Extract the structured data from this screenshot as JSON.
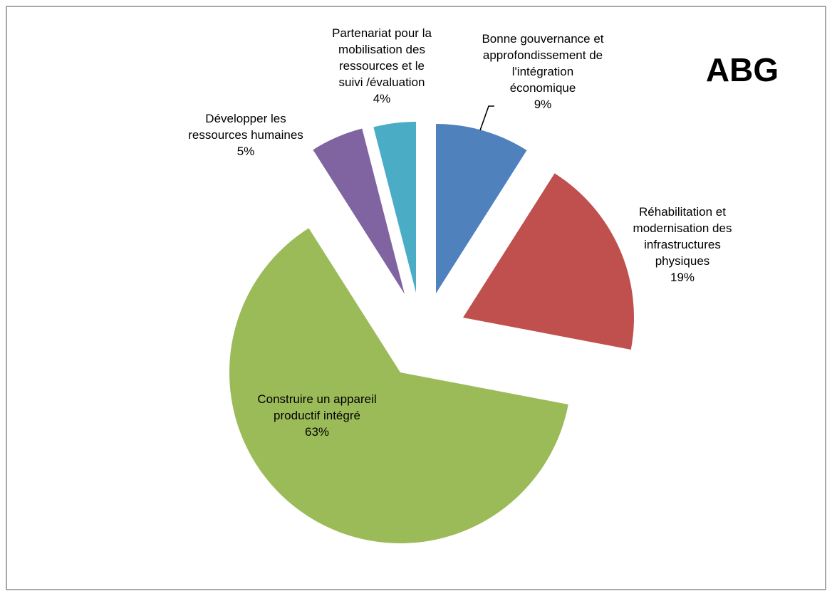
{
  "chart_data": {
    "type": "pie",
    "title": "ABG",
    "exploded": true,
    "start_angle_deg": 0,
    "direction": "clockwise",
    "legend": "none",
    "slices": [
      {
        "label_lines": [
          "Bonne gouvernance et",
          "approfondissement de",
          "l'intégration",
          "économique"
        ],
        "label": "Bonne gouvernance et approfondissement de l'intégration économique",
        "value": 9,
        "percent_label": "9%",
        "color": "#4F81BD"
      },
      {
        "label_lines": [
          "Réhabilitation et",
          "modernisation des",
          "infrastructures",
          "physiques"
        ],
        "label": "Réhabilitation et modernisation des infrastructures physiques",
        "value": 19,
        "percent_label": "19%",
        "color": "#C0504D"
      },
      {
        "label_lines": [
          "Construire un appareil",
          "productif intégré"
        ],
        "label": "Construire un appareil productif intégré",
        "value": 63,
        "percent_label": "63%",
        "color": "#9BBB59"
      },
      {
        "label_lines": [
          "Développer les",
          "ressources humaines"
        ],
        "label": "Développer les ressources humaines",
        "value": 5,
        "percent_label": "5%",
        "color": "#8064A2"
      },
      {
        "label_lines": [
          "Partenariat pour la",
          "mobilisation des",
          "ressources et le",
          "suivi /évaluation"
        ],
        "label": "Partenariat pour la mobilisation des ressources et le suivi /évaluation",
        "value": 4,
        "percent_label": "4%",
        "color": "#4BACC6"
      }
    ]
  }
}
